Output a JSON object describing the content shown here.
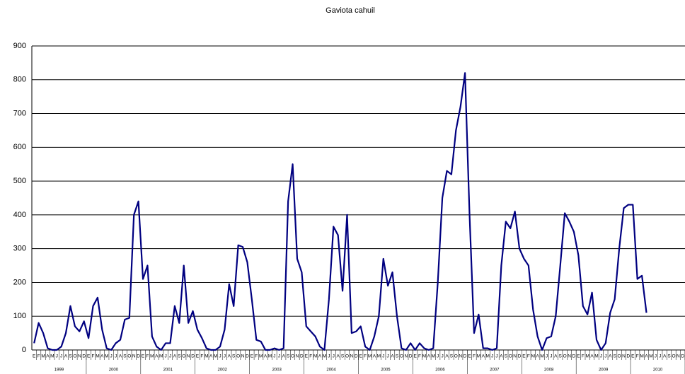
{
  "chart_data": {
    "type": "line",
    "title": "Gaviota cahuil",
    "categories": [
      "E",
      "F",
      "M",
      "A",
      "M",
      "J",
      "J",
      "A",
      "S",
      "O",
      "N",
      "D",
      "E",
      "F",
      "M",
      "A",
      "M",
      "J",
      "J",
      "A",
      "S",
      "O",
      "N",
      "D",
      "E",
      "F",
      "M",
      "A",
      "M",
      "J",
      "J",
      "A",
      "S",
      "O",
      "N",
      "D",
      "E",
      "F",
      "M",
      "A",
      "M",
      "J",
      "J",
      "A",
      "S",
      "O",
      "N",
      "D",
      "E",
      "F",
      "M",
      "A",
      "M",
      "J",
      "J",
      "A",
      "S",
      "O",
      "N",
      "D",
      "E",
      "F",
      "M",
      "A",
      "M",
      "J",
      "J",
      "A",
      "S",
      "O",
      "N",
      "D",
      "E",
      "F",
      "M",
      "A",
      "M",
      "J",
      "J",
      "A",
      "S",
      "O",
      "N",
      "D",
      "E",
      "F",
      "M",
      "A",
      "M",
      "J",
      "J",
      "A",
      "S",
      "O",
      "N",
      "D",
      "E",
      "F",
      "M",
      "A",
      "M",
      "J",
      "J",
      "A",
      "S",
      "O",
      "N",
      "D",
      "E",
      "F",
      "M",
      "A",
      "M",
      "J",
      "J",
      "A",
      "S",
      "O",
      "N",
      "D",
      "E",
      "F",
      "M",
      "A",
      "M",
      "J",
      "J",
      "A",
      "S",
      "O",
      "N",
      "D",
      "E",
      "F",
      "M",
      "A",
      "M",
      "J",
      "J",
      "A",
      "S",
      "O",
      "N",
      "D"
    ],
    "years": [
      "1999",
      "2000",
      "2001",
      "2002",
      "2003",
      "2004",
      "2005",
      "2006",
      "2007",
      "2008",
      "2009",
      "2010"
    ],
    "series": [
      {
        "name": "Gaviota cahuil",
        "color": "#000080",
        "values": [
          20,
          80,
          50,
          5,
          0,
          0,
          10,
          50,
          130,
          70,
          55,
          85,
          35,
          130,
          155,
          60,
          5,
          0,
          20,
          30,
          90,
          95,
          400,
          440,
          210,
          250,
          40,
          10,
          0,
          20,
          20,
          130,
          80,
          250,
          80,
          115,
          60,
          35,
          5,
          0,
          0,
          10,
          60,
          195,
          130,
          310,
          305,
          260,
          150,
          30,
          25,
          0,
          0,
          5,
          0,
          5,
          440,
          550,
          270,
          230,
          70,
          55,
          40,
          10,
          0,
          150,
          365,
          340,
          175,
          400,
          50,
          55,
          70,
          10,
          0,
          40,
          100,
          270,
          190,
          230,
          100,
          5,
          0,
          20,
          0,
          20,
          5,
          0,
          5,
          200,
          450,
          530,
          520,
          650,
          720,
          820,
          400,
          50,
          105,
          5,
          5,
          0,
          5,
          250,
          380,
          360,
          410,
          300,
          270,
          250,
          120,
          40,
          0,
          35,
          40,
          100,
          250,
          405,
          380,
          350,
          280,
          130,
          105,
          170,
          30,
          0,
          20,
          110,
          150,
          300,
          420,
          430,
          430,
          210,
          220,
          110,
          null,
          null,
          null,
          null,
          null,
          null,
          null,
          null
        ]
      }
    ],
    "ylim": [
      0,
      900
    ],
    "yticks": [
      0,
      100,
      200,
      300,
      400,
      500,
      600,
      700,
      800,
      900
    ],
    "grid": true
  }
}
